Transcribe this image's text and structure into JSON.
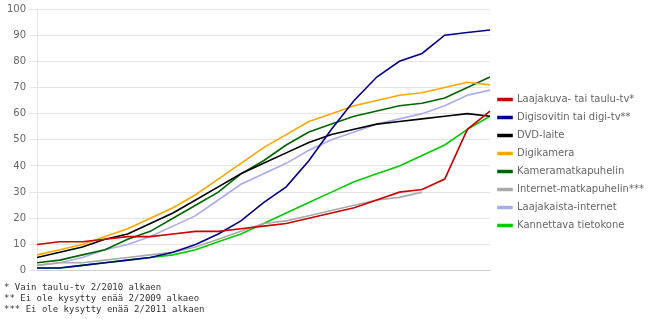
{
  "chart_data": {
    "type": "line",
    "annotation": "* Vain taulu-tv 2/2010 alkaen\n** Ei ole kysytty enää 2/2009 alkaeo\n*** Ei ole kysytty enää 2/2011 alkaen",
    "categories": [
      null,
      null,
      null,
      null,
      null,
      null,
      null,
      null,
      null,
      null,
      null,
      null,
      null,
      null,
      null,
      null,
      null,
      null,
      null,
      null,
      null
    ],
    "series": [
      {
        "name": "Laajakuva- tai taulu-tv*",
        "color": "#cc0000",
        "values": [
          10,
          11,
          11,
          12,
          13,
          13,
          14,
          15,
          15,
          16,
          17,
          18,
          20,
          22,
          24,
          27,
          30,
          31,
          35,
          54,
          61
        ]
      },
      {
        "name": "Digisovitin tai digi-tv**",
        "color": "#00008b",
        "values": [
          1,
          1,
          2,
          3,
          4,
          5,
          7,
          10,
          14,
          19,
          26,
          32,
          42,
          54,
          65,
          74,
          80,
          83,
          90,
          91,
          92
        ]
      },
      {
        "name": "DVD-laite",
        "color": "#000000",
        "values": [
          5,
          7,
          9,
          12,
          14,
          18,
          22,
          27,
          32,
          37,
          41,
          45,
          49,
          52,
          54,
          56,
          57,
          58,
          59,
          60,
          59
        ]
      },
      {
        "name": "Digikamera",
        "color": "#ffa500",
        "values": [
          6,
          8,
          10,
          13,
          16,
          20,
          24,
          29,
          35,
          41,
          47,
          52,
          57,
          60,
          63,
          65,
          67,
          68,
          70,
          72,
          71
        ]
      },
      {
        "name": "Kameramatkapuhelin",
        "color": "#006400",
        "values": [
          3,
          4,
          6,
          8,
          12,
          15,
          20,
          25,
          30,
          37,
          42,
          48,
          53,
          56,
          59,
          61,
          63,
          64,
          66,
          70,
          74
        ]
      },
      {
        "name": "Internet-matkapuhelin***",
        "color": "#aaaaaa",
        "values": [
          2,
          3,
          3,
          4,
          5,
          6,
          7,
          9,
          12,
          15,
          18,
          19,
          21,
          23,
          25,
          27,
          28,
          30,
          null,
          null,
          null
        ]
      },
      {
        "name": "Laajakaista-internet",
        "color": "#aaaaee",
        "values": [
          2,
          3,
          5,
          8,
          10,
          13,
          17,
          21,
          27,
          33,
          37,
          41,
          46,
          50,
          53,
          56,
          58,
          60,
          63,
          67,
          69
        ]
      },
      {
        "name": "Kannettava tietokone",
        "color": "#00cc00",
        "values": [
          1,
          1,
          2,
          3,
          4,
          5,
          6,
          8,
          11,
          14,
          18,
          22,
          26,
          30,
          34,
          37,
          40,
          44,
          48,
          54,
          59
        ]
      }
    ],
    "ylim": [
      0,
      100
    ],
    "yticks": [
      0,
      10,
      20,
      30,
      40,
      50,
      60,
      70,
      80,
      90,
      100
    ],
    "grid": "y",
    "legend": "right",
    "tick_labels": "y"
  }
}
